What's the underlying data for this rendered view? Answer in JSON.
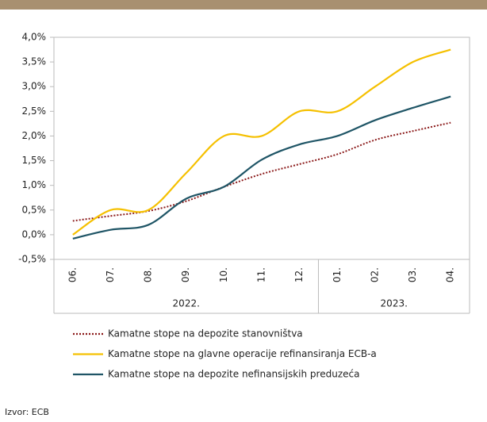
{
  "chart_data": {
    "type": "line",
    "categories": [
      "06.",
      "07.",
      "08.",
      "09.",
      "10.",
      "11.",
      "12.",
      "01.",
      "02.",
      "03.",
      "04."
    ],
    "category_groups": [
      {
        "label": "2022.",
        "span": 7
      },
      {
        "label": "2023.",
        "span": 4
      }
    ],
    "series": [
      {
        "name": "Kamatne stope na depozite stanovništva",
        "color": "#8b1a1a",
        "dash": "dotted",
        "values": [
          0.28,
          0.38,
          0.48,
          0.68,
          0.97,
          1.23,
          1.43,
          1.63,
          1.92,
          2.1,
          2.27
        ]
      },
      {
        "name": "Kamatne stope na glavne operacije refinansiranja ECB-a",
        "color": "#f5c000",
        "dash": "solid",
        "values": [
          0.0,
          0.5,
          0.5,
          1.25,
          2.0,
          2.0,
          2.5,
          2.5,
          3.0,
          3.5,
          3.75
        ]
      },
      {
        "name": "Kamatne stope na depozite nefinansijskih preduzeća",
        "color": "#1f5566",
        "dash": "solid",
        "values": [
          -0.08,
          0.1,
          0.2,
          0.73,
          0.97,
          1.52,
          1.83,
          2.0,
          2.32,
          2.57,
          2.8
        ]
      }
    ],
    "ylim": [
      -0.5,
      4.0
    ],
    "yticks": [
      {
        "value": -0.5,
        "label": "-0,5%"
      },
      {
        "value": 0.0,
        "label": "0,0%"
      },
      {
        "value": 0.5,
        "label": "0,5%"
      },
      {
        "value": 1.0,
        "label": "1,0%"
      },
      {
        "value": 1.5,
        "label": "1,5%"
      },
      {
        "value": 2.0,
        "label": "2,0%"
      },
      {
        "value": 2.5,
        "label": "2,5%"
      },
      {
        "value": 3.0,
        "label": "3,0%"
      },
      {
        "value": 3.5,
        "label": "3,5%"
      },
      {
        "value": 4.0,
        "label": "4,0%"
      }
    ],
    "grid": false,
    "legend": "bottom",
    "source": "Izvor: ECB"
  }
}
